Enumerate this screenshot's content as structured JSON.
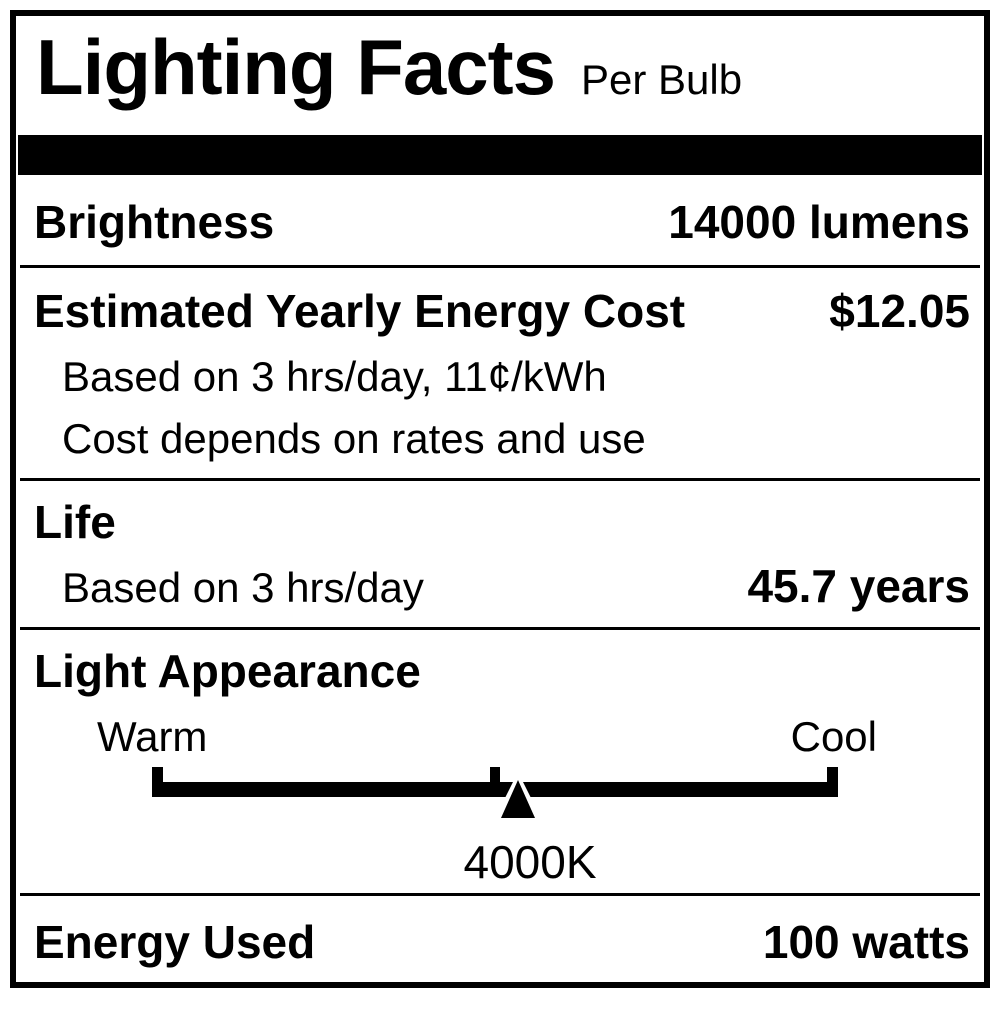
{
  "header": {
    "title": "Lighting Facts",
    "subtitle": "Per Bulb"
  },
  "brightness": {
    "label": "Brightness",
    "value": "14000 lumens"
  },
  "energy_cost": {
    "label": "Estimated Yearly Energy Cost",
    "value": "$12.05",
    "note_basis": "Based on 3 hrs/day, 11¢/kWh",
    "note_disclaimer": "Cost depends on rates and use"
  },
  "life": {
    "label": "Life",
    "note_basis": "Based on 3 hrs/day",
    "value": "45.7 years"
  },
  "light_appearance": {
    "label": "Light Appearance",
    "warm_label": "Warm",
    "cool_label": "Cool",
    "kelvin": "4000K",
    "marker_position_pct": 53.3
  },
  "energy_used": {
    "label": "Energy Used",
    "value": "100 watts"
  },
  "colors": {
    "ink": "#000000",
    "background": "#ffffff"
  }
}
